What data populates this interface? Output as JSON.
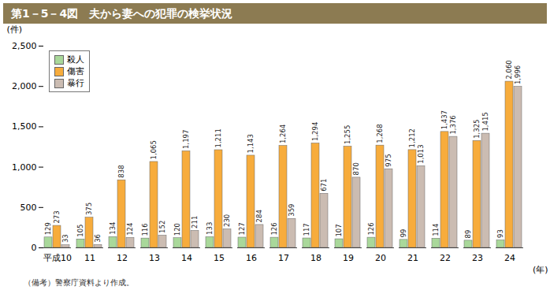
{
  "chart_data": {
    "type": "bar",
    "title": "第1－5－4図　夫から妻への犯罪の検挙状況",
    "y_label": "(件)",
    "x_label": "(年)",
    "note": "（備考）警察庁資料より作成。",
    "categories": [
      "平成10",
      "11",
      "12",
      "13",
      "14",
      "15",
      "16",
      "17",
      "18",
      "19",
      "20",
      "21",
      "22",
      "23",
      "24"
    ],
    "series": [
      {
        "name": "殺人",
        "color": "#a9d89a",
        "values": [
          129,
          105,
          134,
          116,
          120,
          133,
          127,
          126,
          117,
          107,
          126,
          99,
          114,
          89,
          93
        ]
      },
      {
        "name": "傷害",
        "color": "#f7ac3c",
        "values": [
          273,
          375,
          838,
          1065,
          1197,
          1211,
          1143,
          1264,
          1294,
          1255,
          1268,
          1212,
          1437,
          1325,
          2060
        ],
        "value_labels": [
          "273",
          "375",
          "838",
          "1,065",
          "1,197",
          "1,211",
          "1,143",
          "1,264",
          "1,294",
          "1,255",
          "1,268",
          "1,212",
          "1,437",
          "1,325",
          "2,060"
        ]
      },
      {
        "name": "暴行",
        "color": "#cbbcb2",
        "values": [
          33,
          36,
          124,
          152,
          211,
          230,
          284,
          359,
          671,
          870,
          975,
          1013,
          1376,
          1415,
          1996
        ],
        "value_labels": [
          "33",
          "36",
          "124",
          "152",
          "211",
          "230",
          "284",
          "359",
          "671",
          "870",
          "975",
          "1,013",
          "1,376",
          "1,415",
          "1,996"
        ]
      }
    ],
    "ylim": [
      0,
      2500
    ],
    "yticks": [
      0,
      500,
      {
        "value": 1000,
        "label": "1,000"
      },
      {
        "value": 1500,
        "label": "1,500"
      },
      {
        "value": 2000,
        "label": "2,000"
      },
      {
        "value": 2500,
        "label": "2,500"
      }
    ],
    "grid": false,
    "legend": "top-left",
    "data_labels": true
  }
}
